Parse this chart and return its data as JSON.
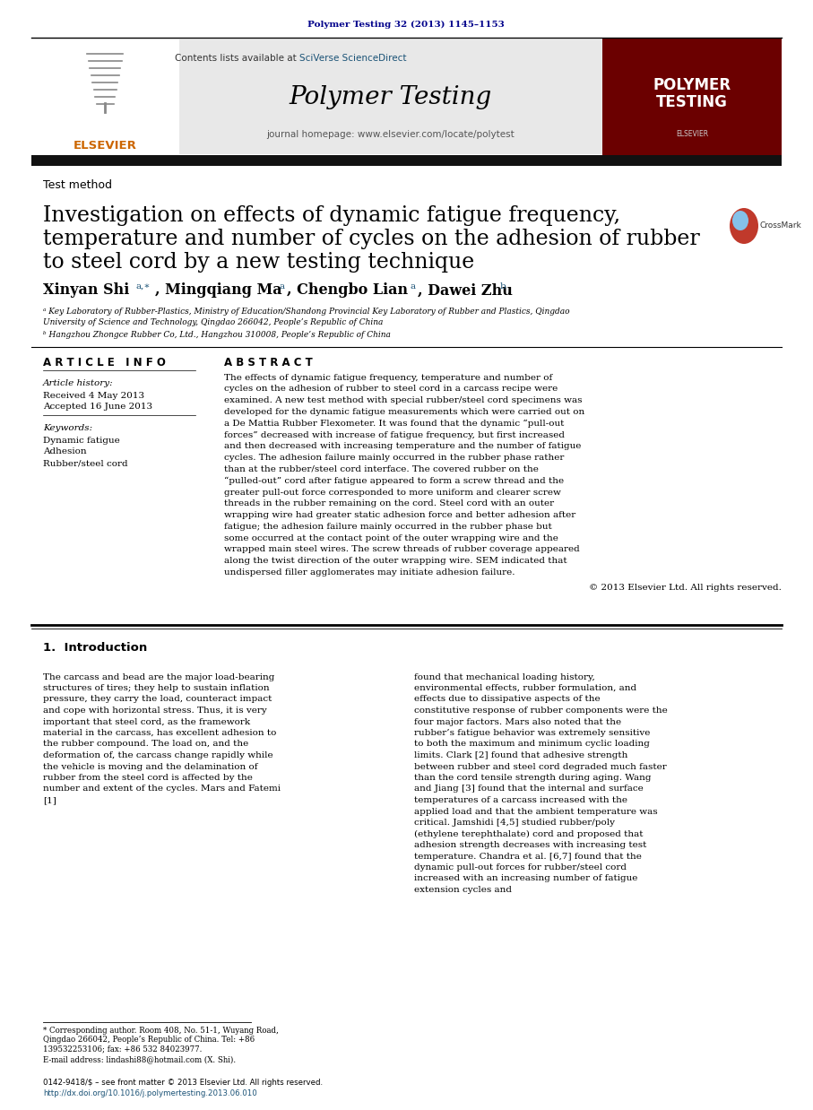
{
  "fig_width": 9.07,
  "fig_height": 12.38,
  "bg_color": "#ffffff",
  "top_citation": "Polymer Testing 32 (2013) 1145–1153",
  "top_citation_color": "#00008B",
  "sciverse_text": "SciVerse ScienceDirect",
  "sciverse_color": "#1a5276",
  "journal_name": "Polymer Testing",
  "journal_homepage": "journal homepage: www.elsevier.com/locate/polytest",
  "sidebar_bg_color": "#6B0000",
  "sidebar_title_line1": "POLYMER",
  "sidebar_title_line2": "TESTING",
  "section_label": "Test method",
  "article_title_line1": "Investigation on effects of dynamic fatigue frequency,",
  "article_title_line2": "temperature and number of cycles on the adhesion of rubber",
  "article_title_line3": "to steel cord by a new testing technique",
  "affil_a": "ᵃ Key Laboratory of Rubber-Plastics, Ministry of Education/Shandong Provincial Key Laboratory of Rubber and Plastics, Qingdao",
  "affil_a2": "University of Science and Technology, Qingdao 266042, People’s Republic of China",
  "affil_b": "ᵇ Hangzhou Zhongce Rubber Co, Ltd., Hangzhou 310008, People’s Republic of China",
  "article_info_header": "A R T I C L E   I N F O",
  "abstract_header": "A B S T R A C T",
  "history_label": "Article history:",
  "received": "Received 4 May 2013",
  "accepted": "Accepted 16 June 2013",
  "keywords_label": "Keywords:",
  "keyword1": "Dynamic fatigue",
  "keyword2": "Adhesion",
  "keyword3": "Rubber/steel cord",
  "abstract_text": "The effects of dynamic fatigue frequency, temperature and number of cycles on the adhesion of rubber to steel cord in a carcass recipe were examined. A new test method with special rubber/steel cord specimens was developed for the dynamic fatigue measurements which were carried out on a De Mattia Rubber Flexometer. It was found that the dynamic “pull-out forces” decreased with increase of fatigue frequency, but first increased and then decreased with increasing temperature and the number of fatigue cycles. The adhesion failure mainly occurred in the rubber phase rather than at the rubber/steel cord interface. The covered rubber on the “pulled-out” cord after fatigue appeared to form a screw thread and the greater pull-out force corresponded to more uniform and clearer screw threads in the rubber remaining on the cord. Steel cord with an outer wrapping wire had greater static adhesion force and better adhesion after fatigue; the adhesion failure mainly occurred in the rubber phase but some occurred at the contact point of the outer wrapping wire and the wrapped main steel wires. The screw threads of rubber coverage appeared along the twist direction of the outer wrapping wire. SEM indicated that undispersed filler agglomerates may initiate adhesion failure.",
  "copyright": "© 2013 Elsevier Ltd. All rights reserved.",
  "intro_header": "1.  Introduction",
  "intro_col1": "The carcass and bead are the major load-bearing structures of tires; they help to sustain inflation pressure, they carry the load, counteract impact and cope with horizontal stress. Thus, it is very important that steel cord, as the framework material in the carcass, has excellent adhesion to the rubber compound. The load on, and the deformation of, the carcass change rapidly while the vehicle is moving and the delamination of rubber from the steel cord is affected by the number and extent of the cycles. Mars and Fatemi [1]",
  "intro_col2": "found that mechanical loading history, environmental effects, rubber formulation, and effects due to dissipative aspects of the constitutive response of rubber components were the four major factors. Mars also noted that the rubber’s fatigue behavior was extremely sensitive to both the maximum and minimum cyclic loading limits. Clark [2] found that adhesive strength between rubber and steel cord degraded much faster than the cord tensile strength during aging. Wang and Jiang [3] found that the internal and surface temperatures of a carcass increased with the applied load and that the ambient temperature was critical. Jamshidi [4,5] studied rubber/poly (ethylene terephthalate) cord and proposed that adhesion strength decreases with increasing test temperature. Chandra et al. [6,7] found that the dynamic pull-out forces for rubber/steel cord increased with an increasing number of fatigue extension cycles and",
  "footnote1": "* Corresponding author. Room 408, No. 51-1, Wuyang Road, Qingdao 266042, People’s Republic of China. Tel: +86 139532253106; fax: +86 532 84023977.",
  "footnote2": "E-mail address: lindashi88@hotmail.com (X. Shi).",
  "footer1": "0142-9418/$ – see front matter © 2013 Elsevier Ltd. All rights reserved.",
  "footer2": "http://dx.doi.org/10.1016/j.polymertesting.2013.06.010",
  "elsevier_color": "#cc6600",
  "link_color": "#1a5276"
}
